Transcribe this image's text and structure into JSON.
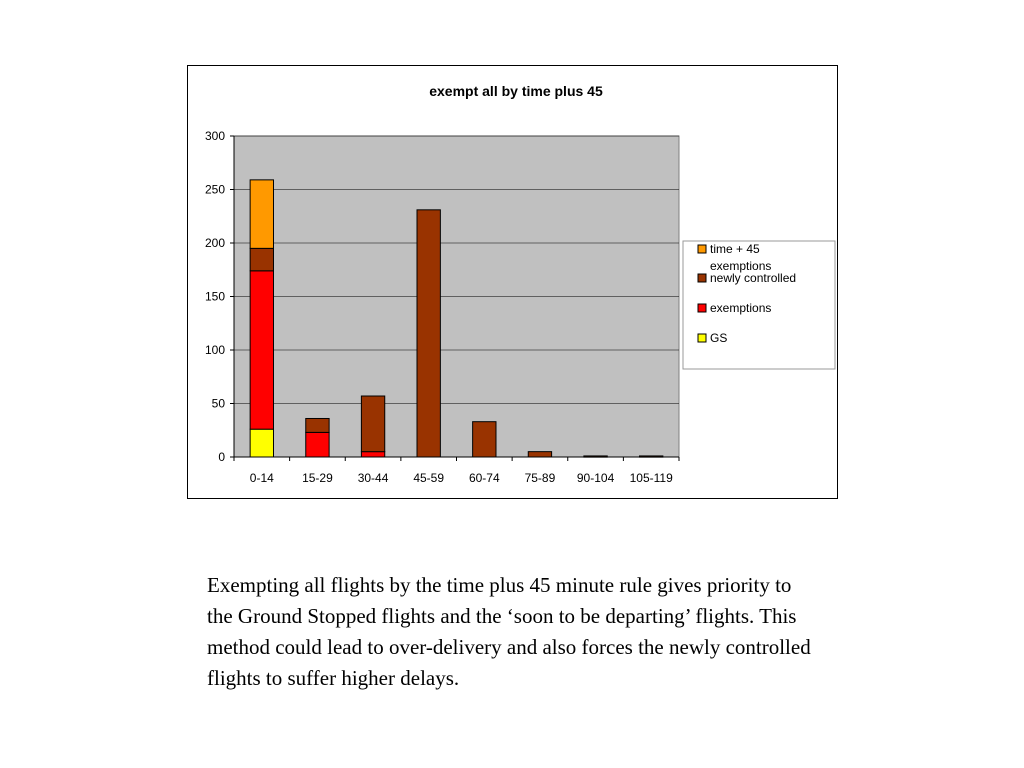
{
  "chart_data": {
    "type": "bar",
    "stacked": true,
    "title": "exempt all by time plus 45",
    "categories": [
      "0-14",
      "15-29",
      "30-44",
      "45-59",
      "60-74",
      "75-89",
      "90-104",
      "105-119"
    ],
    "series": [
      {
        "name": "GS",
        "color": "#ffff00",
        "values": [
          26,
          0,
          0,
          0,
          0,
          0,
          0,
          0
        ]
      },
      {
        "name": "exemptions",
        "color": "#ff0000",
        "values": [
          148,
          23,
          5,
          0,
          0,
          0,
          0,
          0
        ]
      },
      {
        "name": "newly controlled",
        "color": "#993300",
        "values": [
          21,
          13,
          52,
          231,
          33,
          5,
          1,
          1
        ]
      },
      {
        "name": " time + 45 exemptions",
        "color": "#ff9900",
        "values": [
          64,
          0,
          0,
          0,
          0,
          0,
          0,
          0
        ]
      }
    ],
    "ylim": [
      0,
      300
    ],
    "yticks": [
      0,
      50,
      100,
      150,
      200,
      250,
      300
    ],
    "plot_background": "#c0c0c0",
    "grid": true,
    "legend_position": "right",
    "legend_order": [
      " time + 45 exemptions",
      "newly controlled",
      "exemptions",
      "GS"
    ]
  },
  "caption": "Exempting all flights by the time plus 45 minute rule gives priority to the Ground Stopped flights and the ‘soon to be departing’ flights.  This method could lead to over-delivery and also forces the newly controlled flights to suffer higher delays."
}
